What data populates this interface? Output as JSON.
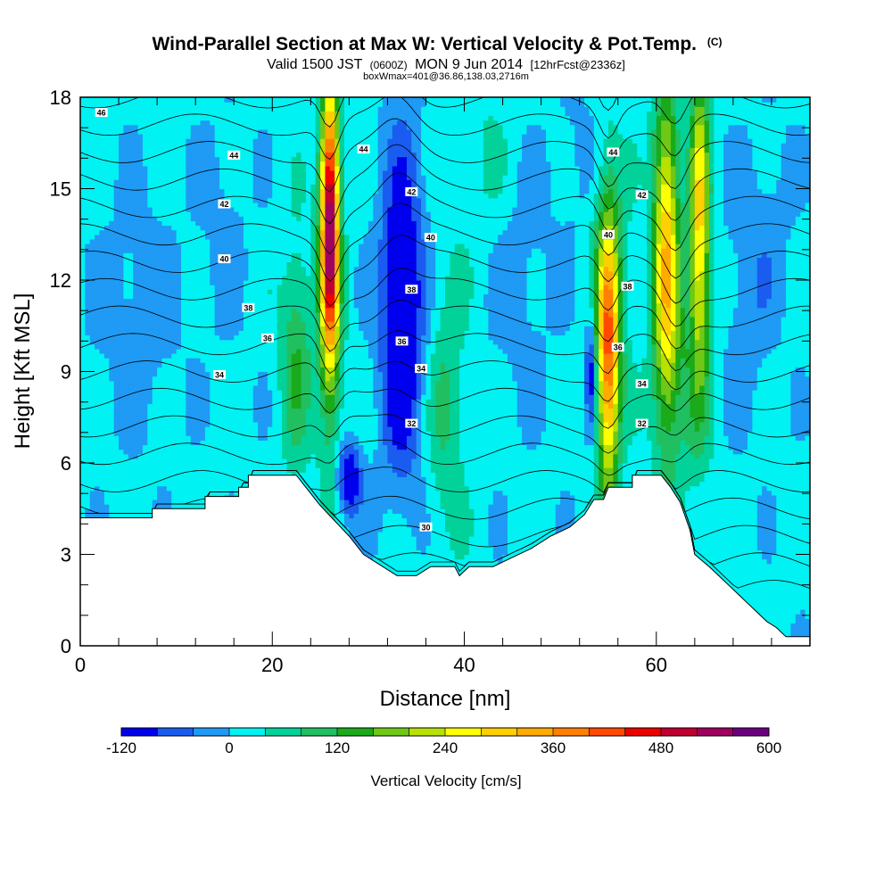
{
  "chart_data": {
    "type": "heatmap",
    "title": "Wind-Parallel Section at Max W: Vertical Velocity & Pot.Temp.",
    "title_mark": "(C)",
    "subtitle": {
      "valid": "Valid 1500 JST",
      "utc": "(0600Z)",
      "date": "MON 9 Jun 2014",
      "forecast": "[12hrFcst@2336z]"
    },
    "subtitle2": "boxWmax=401@36.86,138.03,2716m",
    "xlabel": "Distance [nm]",
    "ylabel": "Height [Kft MSL]",
    "xlim": [
      0,
      76
    ],
    "ylim": [
      0,
      18
    ],
    "x_ticks": [
      0,
      20,
      40,
      60
    ],
    "y_ticks": [
      0,
      3,
      6,
      9,
      12,
      15,
      18
    ],
    "colorbar": {
      "label": "Vertical Velocity [cm/s]",
      "min": -120,
      "max": 600,
      "step": 40,
      "tick_values": [
        -120,
        0,
        120,
        240,
        360,
        480,
        600
      ],
      "colors": [
        "#0000ee",
        "#1a5cf0",
        "#1f9af5",
        "#00f2f2",
        "#00d29a",
        "#20c060",
        "#1aaa1a",
        "#70c816",
        "#b8e000",
        "#ffff00",
        "#ffd000",
        "#ffaa00",
        "#ff8000",
        "#ff4a00",
        "#ee0000",
        "#c00030",
        "#a00060",
        "#6a0080"
      ]
    },
    "terrain": [
      [
        0,
        4.2
      ],
      [
        7.5,
        4.2
      ],
      [
        7.5,
        4.5
      ],
      [
        13,
        4.5
      ],
      [
        13,
        4.9
      ],
      [
        16.5,
        4.9
      ],
      [
        16.5,
        5.2
      ],
      [
        17.5,
        5.2
      ],
      [
        17.5,
        5.6
      ],
      [
        22.5,
        5.6
      ],
      [
        24,
        5.0
      ],
      [
        25,
        4.6
      ],
      [
        26.5,
        4.1
      ],
      [
        28,
        3.6
      ],
      [
        29.5,
        3.0
      ],
      [
        31,
        2.7
      ],
      [
        33,
        2.3
      ],
      [
        35,
        2.3
      ],
      [
        36.5,
        2.6
      ],
      [
        39,
        2.6
      ],
      [
        39.5,
        2.3
      ],
      [
        40.5,
        2.6
      ],
      [
        43,
        2.6
      ],
      [
        45,
        2.9
      ],
      [
        47,
        3.2
      ],
      [
        49,
        3.6
      ],
      [
        51,
        3.9
      ],
      [
        52.5,
        4.3
      ],
      [
        53.5,
        4.8
      ],
      [
        54.5,
        4.8
      ],
      [
        55,
        5.2
      ],
      [
        57.5,
        5.2
      ],
      [
        57.5,
        5.6
      ],
      [
        60.5,
        5.6
      ],
      [
        61.5,
        5.2
      ],
      [
        62.5,
        4.7
      ],
      [
        63.5,
        3.8
      ],
      [
        64,
        3.0
      ],
      [
        65.5,
        2.6
      ],
      [
        66.5,
        2.3
      ],
      [
        67.5,
        2.0
      ],
      [
        68.5,
        1.7
      ],
      [
        69.5,
        1.4
      ],
      [
        70.5,
        1.1
      ],
      [
        71.5,
        0.8
      ],
      [
        72.5,
        0.6
      ],
      [
        73.5,
        0.3
      ],
      [
        76,
        0.3
      ]
    ],
    "w_features": [
      {
        "x": 26,
        "y": 14,
        "sx": 0.9,
        "sy": 4.5,
        "a": 520
      },
      {
        "x": 26,
        "y": 10.5,
        "sx": 1.4,
        "sy": 5,
        "a": 90
      },
      {
        "x": 22.5,
        "y": 9.5,
        "sx": 1.6,
        "sy": 3.5,
        "a": 105
      },
      {
        "x": 33.5,
        "y": 11,
        "sx": 2.3,
        "sy": 5.5,
        "a": -170
      },
      {
        "x": 28,
        "y": 5.5,
        "sx": 1.3,
        "sy": 1.2,
        "a": -150
      },
      {
        "x": 38,
        "y": 8,
        "sx": 2,
        "sy": 4.5,
        "a": 70
      },
      {
        "x": 46,
        "y": 12,
        "sx": 3.5,
        "sy": 4,
        "a": -35
      },
      {
        "x": 6,
        "y": 11,
        "sx": 4.5,
        "sy": 4,
        "a": -40
      },
      {
        "x": 15,
        "y": 14,
        "sx": 2.5,
        "sy": 4,
        "a": -30
      },
      {
        "x": 55,
        "y": 9.5,
        "sx": 1.1,
        "sy": 4.5,
        "a": 330
      },
      {
        "x": 55,
        "y": 11.5,
        "sx": 2,
        "sy": 4.5,
        "a": 90
      },
      {
        "x": 53.2,
        "y": 9,
        "sx": 0.6,
        "sy": 2,
        "a": -150
      },
      {
        "x": 61,
        "y": 13,
        "sx": 1.3,
        "sy": 5.5,
        "a": 290
      },
      {
        "x": 64.5,
        "y": 14,
        "sx": 1,
        "sy": 5,
        "a": 270
      },
      {
        "x": 63,
        "y": 9,
        "sx": 3,
        "sy": 4,
        "a": 70
      },
      {
        "x": 69,
        "y": 11,
        "sx": 2.5,
        "sy": 4,
        "a": -40
      },
      {
        "x": 72,
        "y": 14,
        "sx": 2.5,
        "sy": 4,
        "a": -30
      },
      {
        "x": 42,
        "y": 16,
        "sx": 3,
        "sy": 3,
        "a": 30
      },
      {
        "x": 52,
        "y": 16,
        "sx": 2.5,
        "sy": 3,
        "a": -30
      }
    ],
    "theta_levels": [
      28,
      29,
      30,
      31,
      32,
      33,
      34,
      35,
      36,
      37,
      38,
      39,
      40,
      41,
      42,
      43,
      44,
      45,
      46,
      47
    ],
    "theta_labels": [
      {
        "text": "46",
        "x": 2.2,
        "y": 17.5
      },
      {
        "text": "44",
        "x": 16,
        "y": 16.1
      },
      {
        "text": "44",
        "x": 29.5,
        "y": 16.3
      },
      {
        "text": "44",
        "x": 55.5,
        "y": 16.2
      },
      {
        "text": "42",
        "x": 15,
        "y": 14.5
      },
      {
        "text": "42",
        "x": 34.5,
        "y": 14.9
      },
      {
        "text": "42",
        "x": 58.5,
        "y": 14.8
      },
      {
        "text": "40",
        "x": 15,
        "y": 12.7
      },
      {
        "text": "40",
        "x": 36.5,
        "y": 13.4
      },
      {
        "text": "40",
        "x": 55,
        "y": 13.5
      },
      {
        "text": "38",
        "x": 17.5,
        "y": 11.1
      },
      {
        "text": "38",
        "x": 34.5,
        "y": 11.7
      },
      {
        "text": "38",
        "x": 57,
        "y": 11.8
      },
      {
        "text": "36",
        "x": 19.5,
        "y": 10.1
      },
      {
        "text": "36",
        "x": 33.5,
        "y": 10.0
      },
      {
        "text": "36",
        "x": 56,
        "y": 9.8
      },
      {
        "text": "34",
        "x": 14.5,
        "y": 8.9
      },
      {
        "text": "34",
        "x": 35.5,
        "y": 9.1
      },
      {
        "text": "34",
        "x": 58.5,
        "y": 8.6
      },
      {
        "text": "32",
        "x": 34.5,
        "y": 7.3
      },
      {
        "text": "32",
        "x": 58.5,
        "y": 7.3
      },
      {
        "text": "30",
        "x": 36,
        "y": 3.9
      }
    ]
  }
}
